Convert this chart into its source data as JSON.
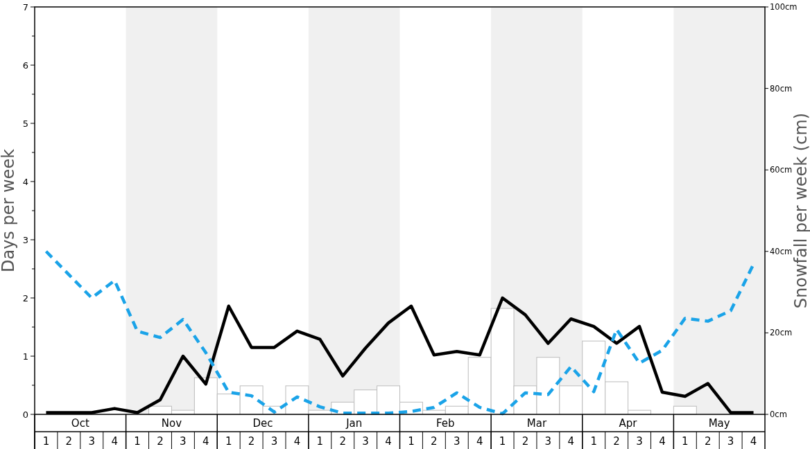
{
  "chart_data": {
    "type": "bar",
    "ylabel": "Days per week",
    "y2label": "Snowfall per week (cm)",
    "categories": [
      "1",
      "2",
      "3",
      "4",
      "1",
      "2",
      "3",
      "4",
      "1",
      "2",
      "3",
      "4",
      "1",
      "2",
      "3",
      "4",
      "1",
      "2",
      "3",
      "4",
      "1",
      "2",
      "3",
      "4",
      "1",
      "2",
      "3",
      "4",
      "1",
      "2",
      "3",
      "4"
    ],
    "annotations": [
      "Oct",
      "Nov",
      "Dec",
      "Jan",
      "Feb",
      "Mar",
      "Apr",
      "May"
    ],
    "series": [
      {
        "axis": "y2",
        "color": "#ffffff",
        "values": [
          0,
          0,
          0,
          0,
          0,
          2,
          1,
          9,
          5,
          7,
          2,
          7,
          1,
          3,
          6,
          7,
          3,
          1,
          2,
          14,
          26,
          7,
          14,
          7,
          18,
          8,
          1,
          0,
          2,
          0,
          0,
          0
        ]
      },
      {
        "type": "line",
        "color": "#000000",
        "line_style": "solid",
        "values": [
          0.03,
          0.03,
          0.03,
          0.1,
          0.03,
          0.25,
          1.0,
          0.52,
          1.86,
          1.15,
          1.15,
          1.43,
          1.29,
          0.66,
          1.14,
          1.57,
          1.86,
          1.02,
          1.08,
          1.02,
          2.0,
          1.71,
          1.22,
          1.64,
          1.51,
          1.22,
          1.51,
          0.38,
          0.31,
          0.53,
          0.03,
          0.03
        ]
      },
      {
        "type": "line",
        "color": "#1aa3e8",
        "line_style": "dashed",
        "values": [
          2.8,
          2.4,
          2.0,
          2.3,
          1.43,
          1.32,
          1.63,
          1.06,
          0.38,
          0.32,
          0.04,
          0.3,
          0.13,
          0.02,
          0.02,
          0.02,
          0.05,
          0.12,
          0.37,
          0.12,
          0.01,
          0.37,
          0.34,
          0.82,
          0.39,
          1.46,
          0.88,
          1.1,
          1.65,
          1.6,
          1.78,
          2.58
        ]
      }
    ],
    "ylim": [
      0,
      7
    ],
    "yticks": [
      0,
      {
        "value": 0.5,
        "label": null
      },
      1,
      {
        "value": 1.5,
        "label": null
      },
      2,
      {
        "value": 2.5,
        "label": null
      },
      3,
      {
        "value": 3.5,
        "label": null
      },
      4,
      {
        "value": 4.5,
        "label": null
      },
      5,
      {
        "value": 5.5,
        "label": null
      },
      6,
      {
        "value": 6.5,
        "label": null
      },
      7
    ],
    "y2lim": [
      0,
      100
    ],
    "y2ticks": [
      {
        "value": 0,
        "label": "0cm"
      },
      {
        "value": 20,
        "label": "20cm"
      },
      {
        "value": 40,
        "label": "40cm"
      },
      {
        "value": 60,
        "label": "60cm"
      },
      {
        "value": 80,
        "label": "80cm"
      },
      {
        "value": 100,
        "label": "100cm"
      }
    ],
    "grid": false,
    "marker": "none"
  }
}
